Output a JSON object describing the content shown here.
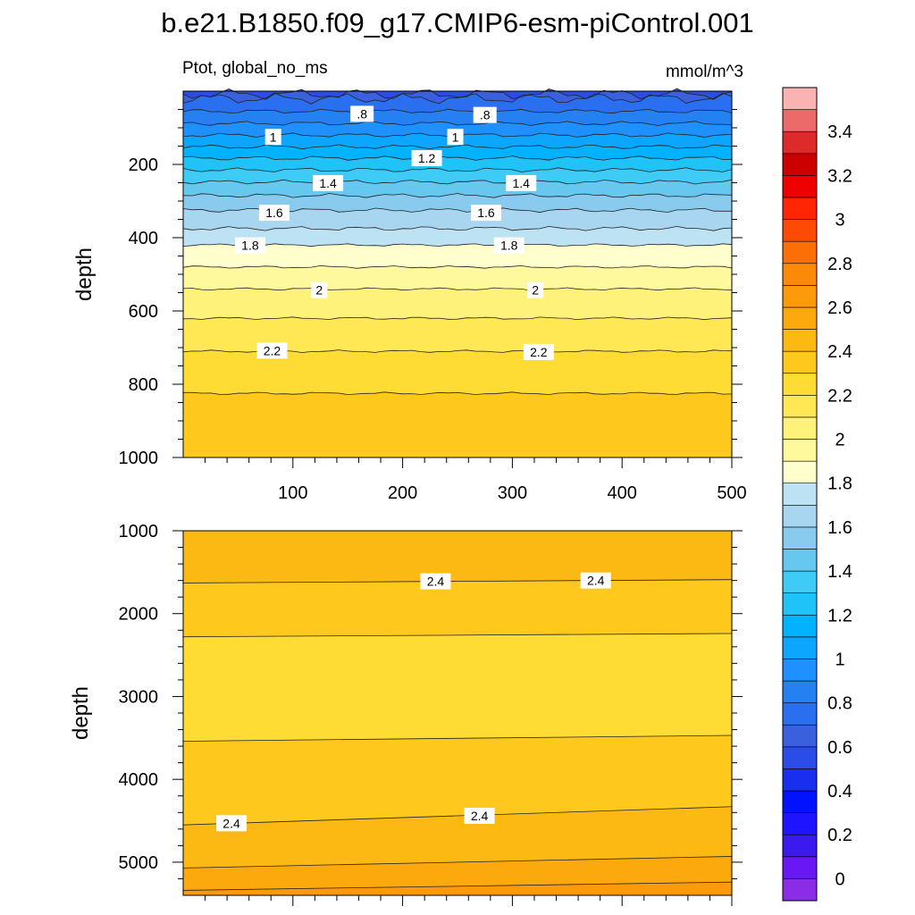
{
  "title": "b.e21.B1850.f09_g17.CMIP6-esm-piControl.001",
  "left_string": "Ptot, global_no_ms",
  "right_string": "mmol/m^3",
  "colorbar": {
    "levels": [
      -0.1,
      0,
      0.1,
      0.2,
      0.3,
      0.4,
      0.5,
      0.6,
      0.7,
      0.8,
      0.9,
      1,
      1.1,
      1.2,
      1.3,
      1.4,
      1.5,
      1.6,
      1.7,
      1.8,
      1.9,
      2,
      2.1,
      2.2,
      2.3,
      2.4,
      2.5,
      2.6,
      2.7,
      2.8,
      2.9,
      3,
      3.1,
      3.2,
      3.3,
      3.4,
      3.5,
      3.6
    ],
    "colors": [
      "#8b2ce6",
      "#6a17f5",
      "#3a1aef",
      "#1e14ff",
      "#0012ff",
      "#1a2ef0",
      "#2c4ce8",
      "#3a60de",
      "#2a6ff0",
      "#2580f2",
      "#1e90ff",
      "#0ca5ff",
      "#00b2ff",
      "#1fc3f8",
      "#3ecbf5",
      "#66c7ef",
      "#88cbee",
      "#a8d6f0",
      "#bde2f3",
      "#fffecd",
      "#fff99e",
      "#fff27a",
      "#ffe854",
      "#fedc34",
      "#fec81c",
      "#fdb913",
      "#fca90e",
      "#fc9a0c",
      "#fb8a09",
      "#fc6f06",
      "#ff4a06",
      "#ff2505",
      "#ee0000",
      "#cc0000",
      "#dd2b2b",
      "#ec6a6a",
      "#fab2b2"
    ],
    "tick_labels": [
      0,
      0.2,
      0.4,
      0.6,
      0.8,
      1,
      1.2,
      1.4,
      1.6,
      1.8,
      2,
      2.2,
      2.4,
      2.6,
      2.8,
      3,
      3.2,
      3.4
    ]
  },
  "chart_data": [
    {
      "type": "heatmap",
      "panel": "upper",
      "xlim": [
        0,
        500
      ],
      "ylim": [
        1000,
        0
      ],
      "ylabel": "depth",
      "xticks": [
        100,
        200,
        300,
        400,
        500
      ],
      "yticks": [
        200,
        400,
        600,
        800,
        1000
      ],
      "contours": [
        {
          "level": 0.6,
          "depth": 8,
          "label": ""
        },
        {
          "level": 0.7,
          "depth": 20,
          "label": ""
        },
        {
          "level": 0.8,
          "depth": 55,
          "label": ".8"
        },
        {
          "level": 0.9,
          "depth": 88,
          "label": ""
        },
        {
          "level": 1.0,
          "depth": 120,
          "label": "1"
        },
        {
          "level": 1.1,
          "depth": 152,
          "label": ""
        },
        {
          "level": 1.2,
          "depth": 183,
          "label": "1.2"
        },
        {
          "level": 1.3,
          "depth": 215,
          "label": ""
        },
        {
          "level": 1.4,
          "depth": 248,
          "label": "1.4"
        },
        {
          "level": 1.5,
          "depth": 285,
          "label": ""
        },
        {
          "level": 1.6,
          "depth": 325,
          "label": "1.6"
        },
        {
          "level": 1.7,
          "depth": 375,
          "label": ""
        },
        {
          "level": 1.8,
          "depth": 420,
          "label": "1.8"
        },
        {
          "level": 1.9,
          "depth": 480,
          "label": ""
        },
        {
          "level": 2.0,
          "depth": 540,
          "label": "2"
        },
        {
          "level": 2.1,
          "depth": 620,
          "label": ""
        },
        {
          "level": 2.2,
          "depth": 710,
          "label": "2.2"
        },
        {
          "level": 2.3,
          "depth": 825,
          "label": ""
        }
      ],
      "label_positions": [
        {
          "label": ".8",
          "x": 163,
          "depth": 62
        },
        {
          "label": ".8",
          "x": 275,
          "depth": 65
        },
        {
          "label": "1",
          "x": 82,
          "depth": 125
        },
        {
          "label": "1",
          "x": 248,
          "depth": 125
        },
        {
          "label": "1.2",
          "x": 222,
          "depth": 183
        },
        {
          "label": "1.4",
          "x": 132,
          "depth": 251
        },
        {
          "label": "1.4",
          "x": 308,
          "depth": 251
        },
        {
          "label": "1.6",
          "x": 83,
          "depth": 332
        },
        {
          "label": "1.6",
          "x": 276,
          "depth": 332
        },
        {
          "label": "1.8",
          "x": 61,
          "depth": 421
        },
        {
          "label": "1.8",
          "x": 297,
          "depth": 421
        },
        {
          "label": "2",
          "x": 124,
          "depth": 543
        },
        {
          "label": "2",
          "x": 321,
          "depth": 543
        },
        {
          "label": "2.2",
          "x": 81,
          "depth": 708
        },
        {
          "label": "2.2",
          "x": 324,
          "depth": 712
        }
      ]
    },
    {
      "type": "heatmap",
      "panel": "lower",
      "xlim": [
        0,
        500
      ],
      "ylim": [
        5400,
        1000
      ],
      "ylabel": "depth",
      "xticks": [
        100,
        200,
        300,
        400,
        500
      ],
      "yticks": [
        1000,
        2000,
        3000,
        4000,
        5000
      ],
      "contours": [
        {
          "level": 2.4,
          "depth_left": 1630,
          "depth_right": 1590,
          "label": "2.4"
        },
        {
          "level": 2.3,
          "depth_left": 2280,
          "depth_right": 2240,
          "label": ""
        },
        {
          "level": 2.3,
          "depth_left": 3540,
          "depth_right": 3470,
          "label": ""
        },
        {
          "level": 2.4,
          "depth_left": 4550,
          "depth_right": 4330,
          "label": "2.4"
        },
        {
          "level": 2.5,
          "depth_left": 5070,
          "depth_right": 4930,
          "label": ""
        },
        {
          "level": 2.6,
          "depth_left": 5340,
          "depth_right": 5240,
          "label": ""
        }
      ],
      "bands": [
        {
          "level": 2.45,
          "from": 1000,
          "to": "c0"
        },
        {
          "level": 2.35,
          "from": "c0",
          "to": "c1"
        },
        {
          "level": 2.25,
          "from": "c1",
          "to": "c2"
        },
        {
          "level": 2.35,
          "from": "c2",
          "to": "c3"
        },
        {
          "level": 2.45,
          "from": "c3",
          "to": "c4"
        },
        {
          "level": 2.55,
          "from": "c4",
          "to": "c5"
        },
        {
          "level": 2.65,
          "from": "c5",
          "to": 5400
        }
      ],
      "label_positions": [
        {
          "label": "2.4",
          "x": 230,
          "depth": 1610
        },
        {
          "label": "2.4",
          "x": 376,
          "depth": 1600
        },
        {
          "label": "2.4",
          "x": 44,
          "depth": 4530
        },
        {
          "label": "2.4",
          "x": 270,
          "depth": 4440
        }
      ]
    }
  ]
}
